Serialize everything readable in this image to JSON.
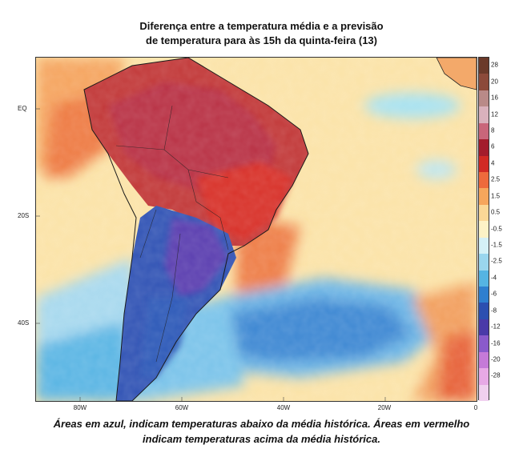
{
  "title_line1": "Diferença entre a temperatura média e a previsão",
  "title_line2": "de temperatura para às 15h da quinta-feira (13)",
  "lat_labels": [
    "EQ",
    "20S",
    "40S"
  ],
  "lon_labels": [
    "80W",
    "60W",
    "40W",
    "20W",
    "0"
  ],
  "colorbar_labels": [
    "28",
    "20",
    "16",
    "12",
    "8",
    "6",
    "4",
    "2.5",
    "1.5",
    "0.5",
    "-0.5",
    "-1.5",
    "-2.5",
    "-4",
    "-6",
    "-8",
    "-12",
    "-16",
    "-20",
    "-28"
  ],
  "colorbar_colors": [
    "#6b3a2a",
    "#8c4a3a",
    "#b98a88",
    "#d9b1bc",
    "#c9667a",
    "#a31c2c",
    "#d12a24",
    "#ee6a3c",
    "#f6a65c",
    "#fbd896",
    "#fdf3c6",
    "#d5f1f7",
    "#9ad6ee",
    "#55b4e3",
    "#2f7fcf",
    "#2c4fb0",
    "#4a3aa8",
    "#8a5acb",
    "#c57ad8",
    "#e7a9e6",
    "#f0d0ef"
  ],
  "caption_line1": "Áreas em azul, indicam temperaturas abaixo da média histórica. Áreas em vermelho",
  "caption_line2": "indicam temperaturas acima da média histórica."
}
